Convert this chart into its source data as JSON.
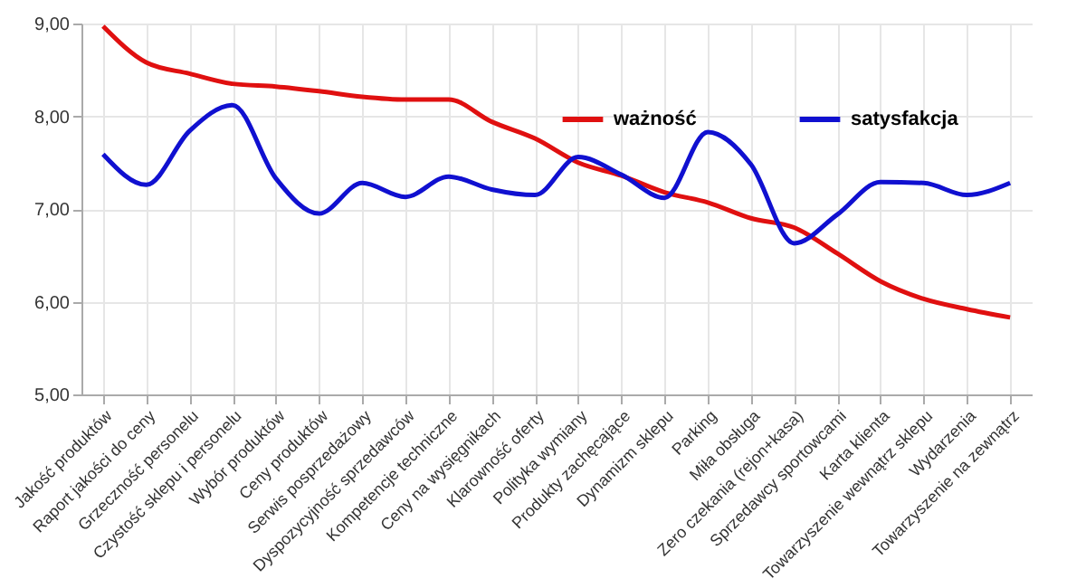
{
  "chart_data": {
    "type": "line",
    "categories": [
      "Jakość produktów",
      "Raport jakości do ceny",
      "Grzeczność personelu",
      "Czystość sklepu i personelu",
      "Wybór produktów",
      "Ceny produktów",
      "Serwis posprzedażowy",
      "Dyspozycyjność sprzedawców",
      "Kompetencje techniczne",
      "Ceny na wysięgnikach",
      "Klarowność oferty",
      "Polityka wymiany",
      "Produkty zachęcające",
      "Dynamizm sklepu",
      "Parking",
      "Miła obsługa",
      "Zero czekania (rejon+kasa)",
      "Sprzedawcy sportowcami",
      "Karta klienta",
      "Towarzyszenie wewnątrz sklepu",
      "Wydarzenia",
      "Towarzyszenie na zewnątrz"
    ],
    "series": [
      {
        "name": "ważność",
        "color": "#e01010",
        "values": [
          8.97,
          8.58,
          8.46,
          8.35,
          8.32,
          8.27,
          8.21,
          8.18,
          8.18,
          7.94,
          7.76,
          7.5,
          7.36,
          7.18,
          7.07,
          6.9,
          6.8,
          6.52,
          6.22,
          6.03,
          5.92,
          5.83
        ]
      },
      {
        "name": "satysfakcja",
        "color": "#1010d0",
        "values": [
          7.59,
          7.26,
          7.84,
          8.12,
          7.33,
          6.95,
          7.28,
          7.13,
          7.35,
          7.21,
          7.15,
          7.56,
          7.37,
          7.12,
          7.83,
          7.48,
          6.63,
          6.94,
          7.29,
          7.28,
          7.15,
          7.28
        ]
      }
    ],
    "ylim": [
      5,
      9
    ],
    "yticks": [
      {
        "value": 5,
        "label": "5,00"
      },
      {
        "value": 6,
        "label": "6,00"
      },
      {
        "value": 7,
        "label": "7,00"
      },
      {
        "value": 8,
        "label": "8,00"
      },
      {
        "value": 9,
        "label": "9,00"
      }
    ],
    "grid": true,
    "legend": "top right",
    "marker": "none",
    "line_style": "solid"
  }
}
